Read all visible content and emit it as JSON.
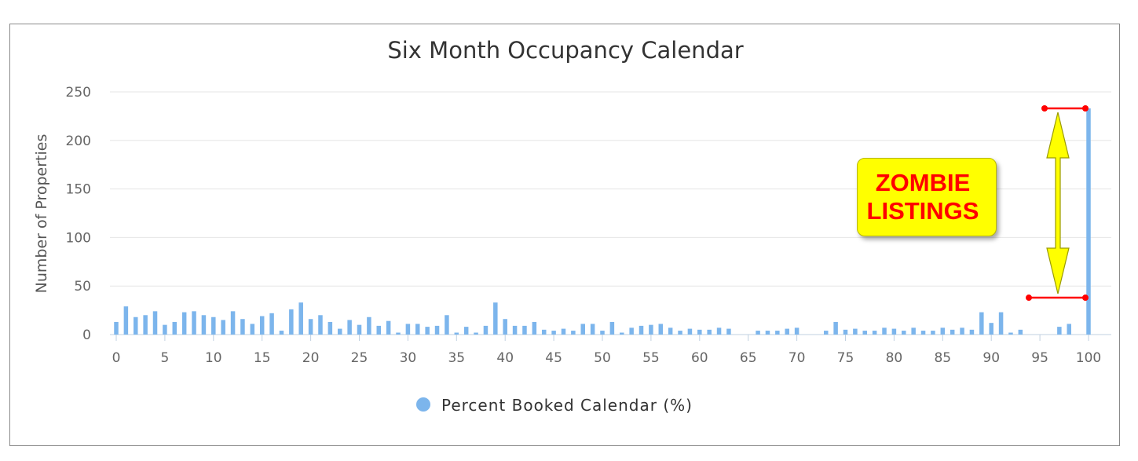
{
  "chart_data": {
    "type": "bar",
    "title": "Six Month Occupancy Calendar",
    "xlabel": "",
    "ylabel": "Number of Properties",
    "xlim": [
      0,
      100
    ],
    "ylim": [
      0,
      250
    ],
    "x_ticks": [
      "0",
      "5",
      "10",
      "15",
      "20",
      "25",
      "30",
      "35",
      "40",
      "45",
      "50",
      "55",
      "60",
      "65",
      "70",
      "75",
      "80",
      "85",
      "90",
      "95",
      "100"
    ],
    "y_ticks": [
      "0",
      "50",
      "100",
      "150",
      "200",
      "250"
    ],
    "grid": "horizontal",
    "legend_position": "bottom",
    "series": [
      {
        "name": "Percent Booked Calendar (%)",
        "color": "#7cb5ec",
        "x": [
          0,
          1,
          2,
          3,
          4,
          5,
          6,
          7,
          8,
          9,
          10,
          11,
          12,
          13,
          14,
          15,
          16,
          17,
          18,
          19,
          20,
          21,
          22,
          23,
          24,
          25,
          26,
          27,
          28,
          29,
          30,
          31,
          32,
          33,
          34,
          35,
          36,
          37,
          38,
          39,
          40,
          41,
          42,
          43,
          44,
          45,
          46,
          47,
          48,
          49,
          50,
          51,
          52,
          53,
          54,
          55,
          56,
          57,
          58,
          59,
          60,
          61,
          62,
          63,
          64,
          65,
          66,
          67,
          68,
          69,
          70,
          71,
          72,
          73,
          74,
          75,
          76,
          77,
          78,
          79,
          80,
          81,
          82,
          83,
          84,
          85,
          86,
          87,
          88,
          89,
          90,
          91,
          92,
          93,
          94,
          95,
          96,
          97,
          98,
          99,
          100
        ],
        "values": [
          13,
          29,
          18,
          20,
          24,
          10,
          13,
          23,
          24,
          20,
          18,
          15,
          24,
          16,
          11,
          19,
          22,
          4,
          26,
          33,
          16,
          20,
          13,
          6,
          15,
          10,
          18,
          9,
          14,
          2,
          11,
          11,
          8,
          9,
          20,
          2,
          8,
          2,
          9,
          33,
          16,
          9,
          9,
          13,
          5,
          4,
          6,
          4,
          11,
          11,
          4,
          13,
          2,
          7,
          9,
          10,
          11,
          7,
          4,
          6,
          5,
          5,
          7,
          6,
          0,
          0,
          4,
          4,
          4,
          6,
          7,
          0,
          0,
          4,
          13,
          5,
          6,
          4,
          4,
          7,
          6,
          4,
          7,
          4,
          4,
          7,
          5,
          7,
          5,
          23,
          12,
          23,
          2,
          5,
          0,
          0,
          0,
          8,
          11,
          0,
          233
        ]
      }
    ],
    "annotation": {
      "text_line1": "ZOMBIE",
      "text_line2": "LISTINGS",
      "bracket_low": 38,
      "bracket_high": 233
    }
  }
}
